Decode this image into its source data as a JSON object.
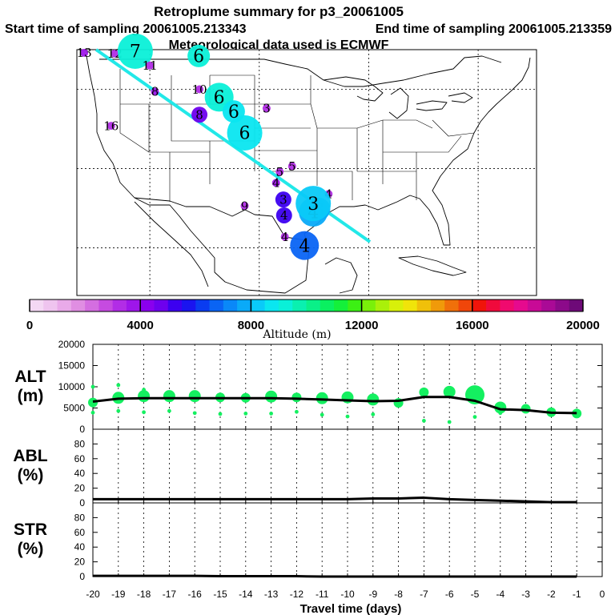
{
  "title": "Retroplume summary for p3_20061005",
  "start_label": "Start time of sampling 20061005.213343",
  "end_label": "End time of sampling 20061005.213359",
  "met_label": "Meteorological data used is ECMWF",
  "colorbar": {
    "title": "Altitude (m)",
    "ticks": [
      0,
      4000,
      8000,
      12000,
      16000,
      20000
    ],
    "tick_labels": [
      "0",
      "4000",
      "8000",
      "12000",
      "16000",
      "20000"
    ],
    "colors": [
      "#f4d8f4",
      "#efc4ef",
      "#e9aae9",
      "#e08ee2",
      "#d46ee0",
      "#c64be0",
      "#b22de6",
      "#9e16ea",
      "#8a00ee",
      "#6e00ee",
      "#3c00f0",
      "#1a14f0",
      "#0a3cf0",
      "#0a64f4",
      "#0a88f8",
      "#0aaaf8",
      "#0acaf8",
      "#0ae6f0",
      "#0af0d8",
      "#0af0b0",
      "#0af088",
      "#0af060",
      "#14f03a",
      "#3cf014",
      "#7af00a",
      "#aaf00a",
      "#d8f00a",
      "#f0e40a",
      "#f0c00a",
      "#f09a0a",
      "#f0700a",
      "#f0460a",
      "#f0140a",
      "#f00a3c",
      "#f00a6e",
      "#e60a8e",
      "#c80a96",
      "#aa0a96",
      "#8c0a8a",
      "#6e0a78"
    ]
  },
  "map": {
    "track_color": "#22e8e8",
    "markers": [
      {
        "label": "13",
        "lon": -124.0,
        "lat": 49.6,
        "alt": 3500
      },
      {
        "label": "12",
        "lon": -119.8,
        "lat": 49.5,
        "alt": 3300
      },
      {
        "label": "7",
        "lon": -117.0,
        "lat": 49.8,
        "alt": 9200
      },
      {
        "label": "6",
        "lon": -108.3,
        "lat": 49.2,
        "alt": 9000
      },
      {
        "label": "11",
        "lon": -115.0,
        "lat": 48.0,
        "alt": 3000
      },
      {
        "label": "8",
        "lon": -114.3,
        "lat": 44.7,
        "alt": 3500
      },
      {
        "label": "10",
        "lon": -108.2,
        "lat": 45.0,
        "alt": 3200
      },
      {
        "label": "6",
        "lon": -105.5,
        "lat": 44.0,
        "alt": 9100
      },
      {
        "label": "8",
        "lon": -108.2,
        "lat": 41.8,
        "alt": 4600
      },
      {
        "label": "6",
        "lon": -103.5,
        "lat": 42.2,
        "alt": 8800
      },
      {
        "label": "3",
        "lon": -99.0,
        "lat": 42.6,
        "alt": 3200
      },
      {
        "label": "6",
        "lon": -102.0,
        "lat": 39.5,
        "alt": 8600
      },
      {
        "label": "16",
        "lon": -120.3,
        "lat": 40.4,
        "alt": 3000
      },
      {
        "label": "5",
        "lon": -95.5,
        "lat": 35.3,
        "alt": 3200
      },
      {
        "label": "5",
        "lon": -97.2,
        "lat": 34.6,
        "alt": 3400
      },
      {
        "label": "4",
        "lon": -90.5,
        "lat": 31.8,
        "alt": 3400
      },
      {
        "label": "4",
        "lon": -97.7,
        "lat": 33.2,
        "alt": 3600
      },
      {
        "label": "3",
        "lon": -96.7,
        "lat": 31.1,
        "alt": 5000
      },
      {
        "label": "3",
        "lon": -91.8,
        "lat": 29.9,
        "alt": 7700
      },
      {
        "label": "4",
        "lon": -92.6,
        "lat": 29.5,
        "alt": 7900
      },
      {
        "label": "3",
        "lon": -92.6,
        "lat": 30.6,
        "alt": 8000
      },
      {
        "label": "4",
        "lon": -96.6,
        "lat": 29.1,
        "alt": 5000
      },
      {
        "label": "4",
        "lon": -93.8,
        "lat": 25.3,
        "alt": 6600
      },
      {
        "label": "4",
        "lon": -96.5,
        "lat": 26.4,
        "alt": 3400
      },
      {
        "label": "9",
        "lon": -102.0,
        "lat": 30.3,
        "alt": 3300
      }
    ]
  },
  "chart_data": [
    {
      "type": "line",
      "name": "ALT",
      "ylabel": "ALT (m)",
      "ylabel_lines": [
        "ALT",
        "(m)"
      ],
      "xlabel": "Travel time (days)",
      "xlim": [
        -20,
        0
      ],
      "ylim": [
        0,
        20000
      ],
      "yticks": [
        0,
        5000,
        10000,
        15000,
        20000
      ],
      "ytick_labels": [
        "0",
        "5000",
        "10000",
        "15000",
        "20000"
      ],
      "x": [
        -20,
        -19,
        -18,
        -17,
        -16,
        -15,
        -14,
        -13,
        -12,
        -11,
        -10,
        -9,
        -8,
        -7,
        -6,
        -5,
        -4,
        -3,
        -2,
        -1
      ],
      "values": [
        6500,
        7200,
        7300,
        7300,
        7300,
        7300,
        7300,
        7300,
        7200,
        7000,
        6800,
        6600,
        6700,
        7600,
        7600,
        6700,
        4700,
        4500,
        3900,
        3800
      ],
      "plume": {
        "x": [
          -20,
          -20,
          -20,
          -19,
          -19,
          -19,
          -18,
          -18,
          -18,
          -17,
          -17,
          -17,
          -16,
          -16,
          -15,
          -15,
          -14,
          -14,
          -13,
          -13,
          -12,
          -12,
          -11,
          -11,
          -10,
          -10,
          -9,
          -9,
          -8,
          -7,
          -7,
          -6,
          -6,
          -5,
          -5,
          -4,
          -4,
          -3,
          -2,
          -1
        ],
        "y": [
          6300,
          3900,
          10000,
          7400,
          4300,
          10400,
          7800,
          4000,
          9300,
          7800,
          4300,
          8700,
          7800,
          3800,
          7500,
          3600,
          7400,
          3700,
          7700,
          3700,
          7500,
          4100,
          7300,
          3400,
          7500,
          3000,
          7000,
          3500,
          6200,
          8700,
          2000,
          8800,
          1700,
          8100,
          2900,
          5100,
          3800,
          4800,
          4000,
          3700
        ],
        "size": [
          2,
          1,
          1,
          3,
          1,
          1,
          3,
          1,
          1,
          3,
          1,
          1,
          3,
          1,
          2,
          1,
          2,
          1,
          3,
          1,
          2,
          1,
          3,
          1,
          3,
          1,
          3,
          1,
          2,
          2,
          1,
          3,
          1,
          5,
          1,
          3,
          1,
          2,
          2,
          2
        ]
      },
      "dot_color": "#14f060"
    },
    {
      "type": "line",
      "name": "ABL",
      "ylabel": "ABL (%)",
      "ylabel_lines": [
        "ABL",
        "(%)"
      ],
      "xlabel": "Travel time (days)",
      "xlim": [
        -20,
        0
      ],
      "ylim": [
        0,
        100
      ],
      "yticks": [
        0,
        20,
        40,
        60,
        80
      ],
      "ytick_labels": [
        "0",
        "20",
        "40",
        "60",
        "80"
      ],
      "x": [
        -20,
        -19,
        -18,
        -17,
        -16,
        -15,
        -14,
        -13,
        -12,
        -11,
        -10,
        -9,
        -8,
        -7,
        -6,
        -5,
        -4,
        -3,
        -2,
        -1
      ],
      "values": [
        5,
        5,
        5,
        5,
        5,
        5,
        5,
        5,
        5,
        5,
        5,
        6,
        6,
        7,
        5,
        4,
        3,
        2,
        1,
        1
      ]
    },
    {
      "type": "line",
      "name": "STR",
      "ylabel": "STR (%)",
      "ylabel_lines": [
        "STR",
        "(%)"
      ],
      "xlabel": "Travel time (days)",
      "xlim": [
        -20,
        0
      ],
      "ylim": [
        0,
        100
      ],
      "yticks": [
        0,
        20,
        40,
        60,
        80
      ],
      "ytick_labels": [
        "0",
        "20",
        "40",
        "60",
        "80"
      ],
      "x": [
        -20,
        -19,
        -18,
        -17,
        -16,
        -15,
        -14,
        -13,
        -12,
        -11,
        -10,
        -9,
        -8,
        -7,
        -6,
        -5,
        -4,
        -3,
        -2,
        -1
      ],
      "values": [
        1,
        1,
        1,
        1,
        1,
        0.5,
        0.5,
        0.5,
        0.5,
        0,
        0,
        0,
        0,
        0,
        0,
        0,
        0,
        0,
        0,
        0
      ]
    }
  ],
  "x_axis": {
    "label": "Travel time (days)",
    "ticks": [
      -20,
      -19,
      -18,
      -17,
      -16,
      -15,
      -14,
      -13,
      -12,
      -11,
      -10,
      -9,
      -8,
      -7,
      -6,
      -5,
      -4,
      -3,
      -2,
      -1,
      0
    ],
    "tick_labels": [
      "-20",
      "-19",
      "-18",
      "-17",
      "-16",
      "-15",
      "-14",
      "-13",
      "-12",
      "-11",
      "-10",
      "-9",
      "-8",
      "-7",
      "-6",
      "-5",
      "-4",
      "-3",
      "-2",
      "-1",
      "0"
    ]
  }
}
